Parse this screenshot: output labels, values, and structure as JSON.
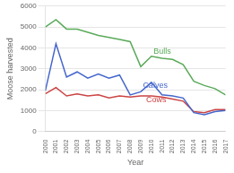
{
  "chart_data": {
    "type": "line",
    "x_label": "Year",
    "y_label": "Moose harvested",
    "x": [
      2000,
      2001,
      2002,
      2003,
      2004,
      2005,
      2006,
      2007,
      2008,
      2009,
      2010,
      2011,
      2012,
      2013,
      2014,
      2015,
      2016,
      2017
    ],
    "series": [
      {
        "name": "Bulls",
        "color": "#5aaa5a",
        "values": [
          5000,
          5350,
          4900,
          4900,
          4750,
          4600,
          4500,
          4400,
          4300,
          3100,
          3600,
          3500,
          3450,
          3200,
          2400,
          2200,
          2050,
          1750
        ]
      },
      {
        "name": "Calves",
        "color": "#4466cc",
        "values": [
          1950,
          4200,
          2600,
          2850,
          2550,
          2750,
          2550,
          2700,
          1750,
          1900,
          2350,
          1750,
          1700,
          1600,
          900,
          800,
          950,
          1000
        ]
      },
      {
        "name": "Cows",
        "color": "#cc4444",
        "values": [
          1800,
          2100,
          1700,
          1800,
          1700,
          1750,
          1600,
          1700,
          1650,
          1700,
          1700,
          1650,
          1550,
          1450,
          950,
          900,
          1050,
          1050
        ]
      }
    ],
    "annotations": [
      {
        "text": "Bulls",
        "x": 2010.2,
        "y": 3700,
        "color": "#5aaa5a"
      },
      {
        "text": "Calves",
        "x": 2009.2,
        "y": 2100,
        "color": "#4466cc"
      },
      {
        "text": "Cows",
        "x": 2009.5,
        "y": 1400,
        "color": "#cc4444"
      }
    ],
    "xlim": [
      2000,
      2017
    ],
    "xticks": [
      2000,
      2001,
      2002,
      2003,
      2004,
      2005,
      2006,
      2007,
      2008,
      2009,
      2010,
      2011,
      2012,
      2013,
      2014,
      2015,
      2016,
      2017
    ],
    "ylim": [
      0,
      6000
    ],
    "yticks": [
      0,
      1000,
      2000,
      3000,
      4000,
      5000,
      6000
    ],
    "grid": "y"
  }
}
